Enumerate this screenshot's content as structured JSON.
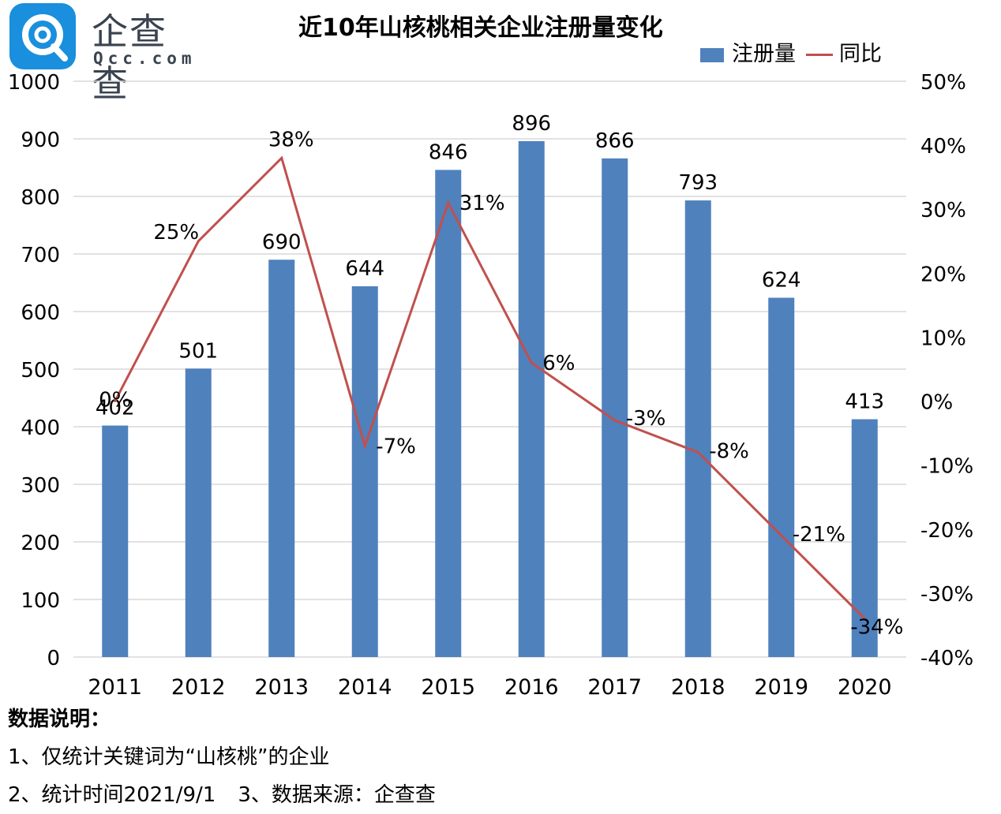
{
  "logo": {
    "brand": "企查查",
    "domain": "Qcc.com"
  },
  "chart_data": {
    "type": "bar",
    "title": "近10年山核桃相关企业注册量变化",
    "categories": [
      "2011",
      "2012",
      "2013",
      "2014",
      "2015",
      "2016",
      "2017",
      "2018",
      "2019",
      "2020"
    ],
    "series": [
      {
        "name": "注册量",
        "type": "bar",
        "axis": "left",
        "color": "#4f81bd",
        "values": [
          402,
          501,
          690,
          644,
          846,
          896,
          866,
          793,
          624,
          413
        ],
        "labels": [
          "402",
          "501",
          "690",
          "644",
          "846",
          "896",
          "866",
          "793",
          "624",
          "413"
        ]
      },
      {
        "name": "同比",
        "type": "line",
        "axis": "right",
        "color": "#c0504d",
        "values": [
          0,
          25,
          38,
          -7,
          31,
          6,
          -3,
          -8,
          -21,
          -34
        ],
        "labels": [
          "0%",
          "25%",
          "38%",
          "-7%",
          "31%",
          "6%",
          "-3%",
          "-8%",
          "-21%",
          "-34%"
        ]
      }
    ],
    "y_left": {
      "range": [
        0,
        1000
      ],
      "ticks": [
        "0",
        "100",
        "200",
        "300",
        "400",
        "500",
        "600",
        "700",
        "800",
        "900",
        "1000"
      ]
    },
    "y_right": {
      "range": [
        -40,
        50
      ],
      "ticks": [
        "-40%",
        "-30%",
        "-20%",
        "-10%",
        "0%",
        "10%",
        "20%",
        "30%",
        "40%",
        "50%"
      ]
    },
    "grid": true,
    "legend_position": "top-right"
  },
  "notes": {
    "heading": "数据说明：",
    "line1": "1、仅统计关键词为“山核桃”的企业",
    "line2": "2、统计时间2021/9/1",
    "line3": "3、数据来源：企查查"
  }
}
